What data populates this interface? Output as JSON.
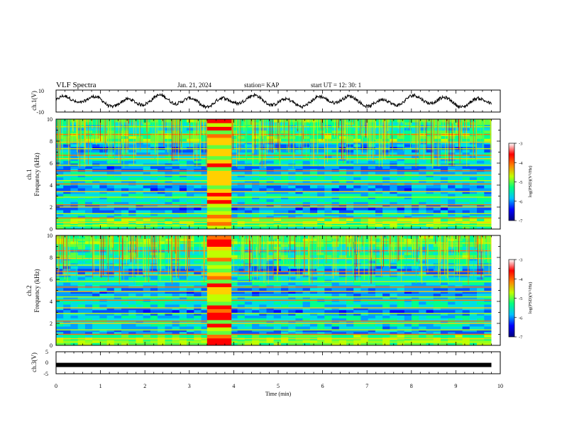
{
  "header": {
    "title": "VLF Spectra",
    "date": "Jan. 21, 2024",
    "station": "station= KAP",
    "start": "start  UT =   12: 30: 1"
  },
  "chart_data": [
    {
      "type": "line",
      "panel": "ch1-waveform",
      "ylabel": "ch.1(V)",
      "ylim": [
        -10,
        10
      ],
      "yticks": [
        "10",
        "-10"
      ],
      "xlim": [
        0,
        10
      ],
      "x_extent_min": 9.8,
      "series_shape": "noisy oscillating waveform, mostly between -5 and 5 V"
    },
    {
      "type": "heatmap",
      "panel": "ch1-spectrogram",
      "ylabel_top": "ch.1",
      "ylabel": "Frequency (kHz)",
      "ylim": [
        0,
        10
      ],
      "yticks": [
        "0",
        "2",
        "4",
        "6",
        "8",
        "10"
      ],
      "xlim": [
        0,
        10
      ],
      "x_extent_min": 9.8,
      "burst_interval_min": [
        3.4,
        3.95
      ],
      "colorbar": {
        "label": "log(PSD)(V²/Hz)",
        "range": [
          -7,
          -3
        ],
        "ticks": [
          "-3",
          "-4",
          "-5",
          "-6",
          "-7"
        ],
        "colors": [
          "#000080",
          "#0000ff",
          "#00c0ff",
          "#00ff80",
          "#c0ff00",
          "#ff8000",
          "#ff0000",
          "#ffffff"
        ]
      }
    },
    {
      "type": "heatmap",
      "panel": "ch2-spectrogram",
      "ylabel_top": "ch.2",
      "ylabel": "Frequency (kHz)",
      "ylim": [
        0,
        10
      ],
      "yticks": [
        "0",
        "2",
        "4",
        "6",
        "8",
        "10"
      ],
      "xlim": [
        0,
        10
      ],
      "x_extent_min": 9.8,
      "burst_interval_min": [
        3.4,
        3.95
      ],
      "colorbar": {
        "label": "log(PSD)(V²/Hz)",
        "range": [
          -7,
          -3
        ],
        "ticks": [
          "-3",
          "-4",
          "-5",
          "-6",
          "-7"
        ],
        "colors": [
          "#000080",
          "#0000ff",
          "#00c0ff",
          "#00ff80",
          "#c0ff00",
          "#ff8000",
          "#ff0000",
          "#ffffff"
        ]
      }
    },
    {
      "type": "line",
      "panel": "ch3-waveform",
      "ylabel": "ch.3(V)",
      "ylim": [
        -5,
        5
      ],
      "yticks": [
        "5",
        "0",
        "-5"
      ],
      "xlim": [
        0,
        10
      ],
      "x_extent_min": 9.8,
      "level_V": -1
    }
  ],
  "xaxis": {
    "label": "Time  (min)",
    "ticks": [
      "0",
      "1",
      "2",
      "3",
      "4",
      "5",
      "6",
      "7",
      "8",
      "9",
      "10"
    ]
  }
}
